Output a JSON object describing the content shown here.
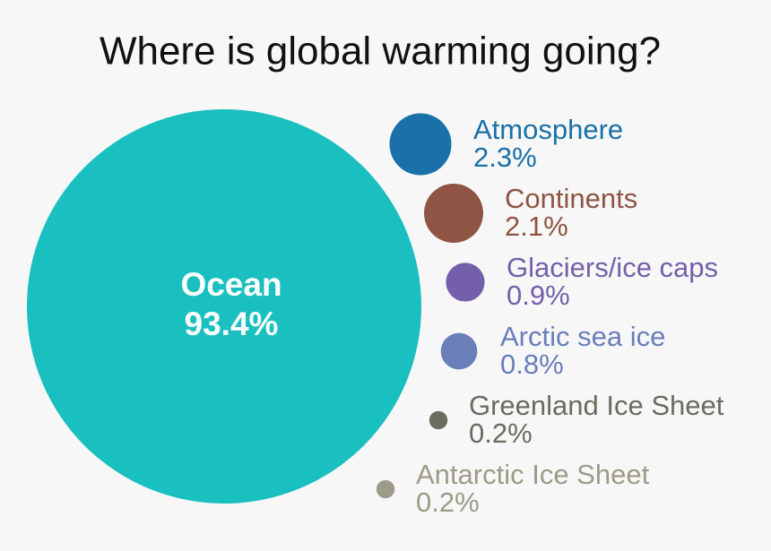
{
  "chart_data": {
    "type": "bubble",
    "title": "Where is global warming going?",
    "categories": [
      "Ocean",
      "Atmosphere",
      "Continents",
      "Glaciers/ice caps",
      "Arctic sea ice",
      "Greenland Ice Sheet",
      "Antarctic Ice Sheet"
    ],
    "values": [
      93.4,
      2.3,
      2.1,
      0.9,
      0.8,
      0.2,
      0.2
    ],
    "value_labels": [
      "93.4%",
      "2.3%",
      "2.1%",
      "0.9%",
      "0.8%",
      "0.2%",
      "0.2%"
    ],
    "colors": [
      "#1abfc0",
      "#1a70a8",
      "#8f5443",
      "#7460aa",
      "#6a7fba",
      "#6b6b5e",
      "#9d9a87"
    ]
  }
}
